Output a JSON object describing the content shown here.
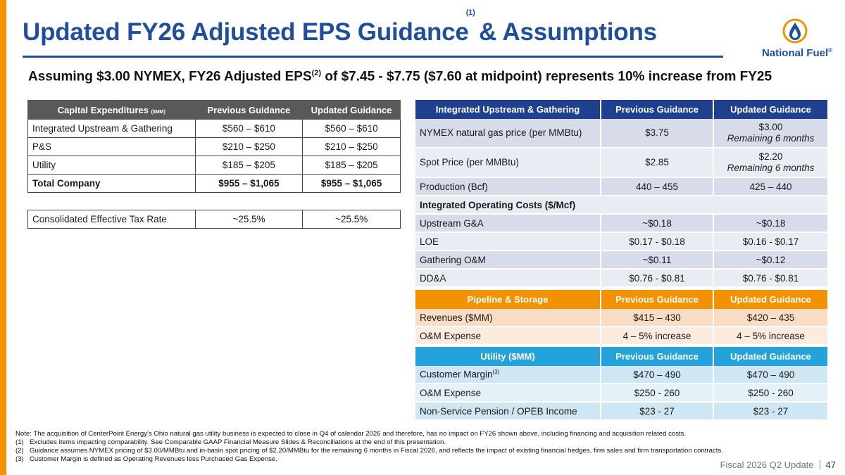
{
  "title": {
    "text_before": "Updated FY26 Adjusted EPS Guidance",
    "sup": "(1)",
    "text_after": "& Assumptions"
  },
  "logo": {
    "name": "National Fuel",
    "mark": "®",
    "icon": "flame-drop-icon"
  },
  "subtitle": {
    "before": "Assuming $3.00 NYMEX, FY26 Adjusted EPS",
    "sup": "(2)",
    "after": " of $7.45 - $7.75 ($7.60 at midpoint) represents 10% increase from FY25"
  },
  "capex": {
    "header": {
      "label": "Capital Expenditures",
      "unit": "($MM)",
      "prev": "Previous Guidance",
      "upd": "Updated Guidance"
    },
    "rows": [
      {
        "label": "Integrated Upstream & Gathering",
        "prev": "$560 – $610",
        "upd": "$560 – $610"
      },
      {
        "label": "P&S",
        "prev": "$210 – $250",
        "upd": "$210 – $250"
      },
      {
        "label": "Utility",
        "prev": "$185 – $205",
        "upd": "$185 – $205"
      },
      {
        "label": "Total Company",
        "prev": "$955 – $1,065",
        "upd": "$955 – $1,065"
      }
    ]
  },
  "tax": {
    "label": "Consolidated Effective Tax Rate",
    "prev": "~25.5%",
    "upd": "~25.5%"
  },
  "upstream": {
    "header": {
      "label": "Integrated Upstream & Gathering",
      "prev": "Previous Guidance",
      "upd": "Updated Guidance"
    },
    "rows": [
      {
        "label": "NYMEX natural gas price (per MMBtu)",
        "prev": "$3.75",
        "upd": "$3.00",
        "note": "Remaining 6 months"
      },
      {
        "label": "Spot Price (per MMBtu)",
        "prev": "$2.85",
        "upd": "$2.20",
        "note": "Remaining 6 months"
      },
      {
        "label": "Production (Bcf)",
        "prev": "440 – 455",
        "upd": "425 – 440"
      }
    ],
    "section": "Integrated Operating Costs ($/Mcf)",
    "cost_rows": [
      {
        "label": "Upstream G&A",
        "prev": "~$0.18",
        "upd": "~$0.18"
      },
      {
        "label": "LOE",
        "prev": "$0.17 - $0.18",
        "upd": "$0.16 - $0.17"
      },
      {
        "label": "Gathering O&M",
        "prev": "~$0.11",
        "upd": "~$0.12"
      },
      {
        "label": "DD&A",
        "prev": "$0.76 - $0.81",
        "upd": "$0.76 - $0.81"
      }
    ]
  },
  "pipeline": {
    "header": {
      "label": "Pipeline & Storage",
      "prev": "Previous Guidance",
      "upd": "Updated Guidance"
    },
    "rows": [
      {
        "label": "Revenues ($MM)",
        "prev": "$415 – 430",
        "upd": "$420 – 435"
      },
      {
        "label": "O&M Expense",
        "prev": "4 – 5% increase",
        "upd": "4 – 5% increase"
      }
    ]
  },
  "utility": {
    "header": {
      "label": "Utility ($MM)",
      "prev": "Previous Guidance",
      "upd": "Updated Guidance"
    },
    "rows": [
      {
        "label": "Customer Margin",
        "sup": "(3)",
        "prev": "$470 – 490",
        "upd": "$470 – 490"
      },
      {
        "label": "O&M Expense",
        "prev": "$250 - 260",
        "upd": "$250 - 260"
      },
      {
        "label": "Non-Service Pension / OPEB Income",
        "prev": "$23 - 27",
        "upd": "$23 - 27"
      }
    ]
  },
  "notes": {
    "main": "Note: The acquisition of CenterPoint Energy’s Ohio natural gas utility business is expected to close in Q4 of calendar 2026 and therefore, has no impact on FY26 shown above, including financing and acquisition related costs.",
    "items": [
      {
        "num": "(1)",
        "text": "Excludes items impacting comparability. See Comparable GAAP Financial Measure Slides & Reconciliations at the end of this presentation."
      },
      {
        "num": "(2)",
        "text": "Guidance assumes NYMEX pricing of $3.00/MMBtu and in-basin spot pricing of $2.20/MMBtu for the remaining 6 months in Fiscal 2026, and reflects the impact of existing financial hedges, firm sales and firm transportation contracts."
      },
      {
        "num": "(3)",
        "text": "Customer Margin is defined as Operating Revenues less Purchased Gas Expense."
      }
    ]
  },
  "footer": {
    "label": "Fiscal 2026 Q2 Update",
    "page": "47"
  },
  "colors": {
    "brand_blue": "#1f4e9c",
    "accent_orange": "#f39200",
    "utility_blue": "#23a3d9",
    "header_gray": "#595959"
  }
}
